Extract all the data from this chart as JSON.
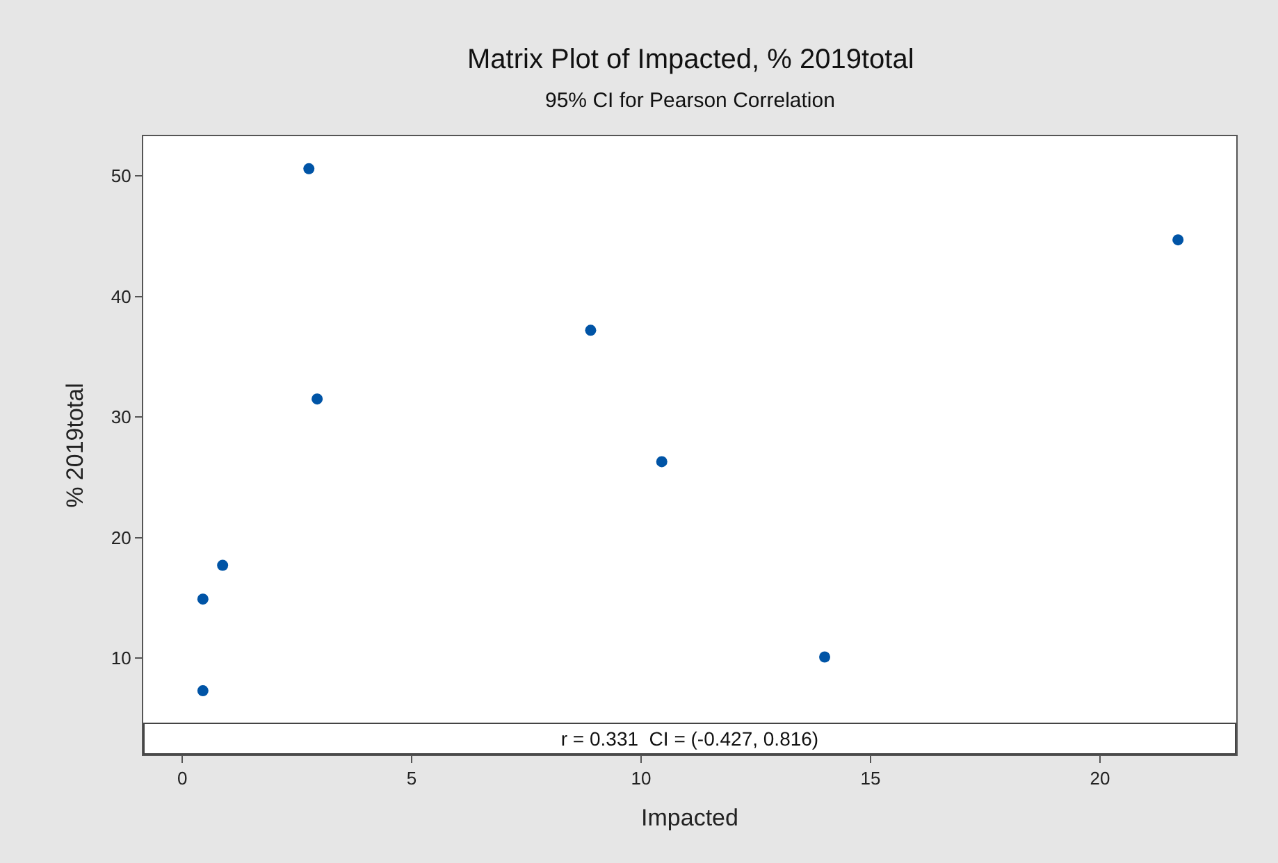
{
  "chart_data": {
    "type": "scatter",
    "title": "Matrix Plot of Impacted, % 2019total",
    "subtitle": "95% CI for Pearson Correlation",
    "xlabel": "Impacted",
    "ylabel": "% 2019total",
    "x": [
      2.76,
      2.94,
      0.45,
      0.88,
      0.45,
      8.9,
      10.45,
      14.0,
      21.7
    ],
    "series": [
      {
        "color": "#0054a6",
        "values": [
          50.6,
          31.5,
          14.9,
          17.7,
          7.3,
          37.2,
          26.3,
          10.1,
          44.7
        ]
      }
    ],
    "xlim": [
      -0.85,
      22.97
    ],
    "xticks": [
      0,
      5,
      10,
      15,
      20
    ],
    "ylim": [
      2.0,
      53.3
    ],
    "yticks": [
      10,
      20,
      30,
      40,
      50
    ],
    "grid": false,
    "marker": "circle",
    "annotations": [
      "r = 0.331  CI = (-0.427, 0.816)"
    ]
  }
}
